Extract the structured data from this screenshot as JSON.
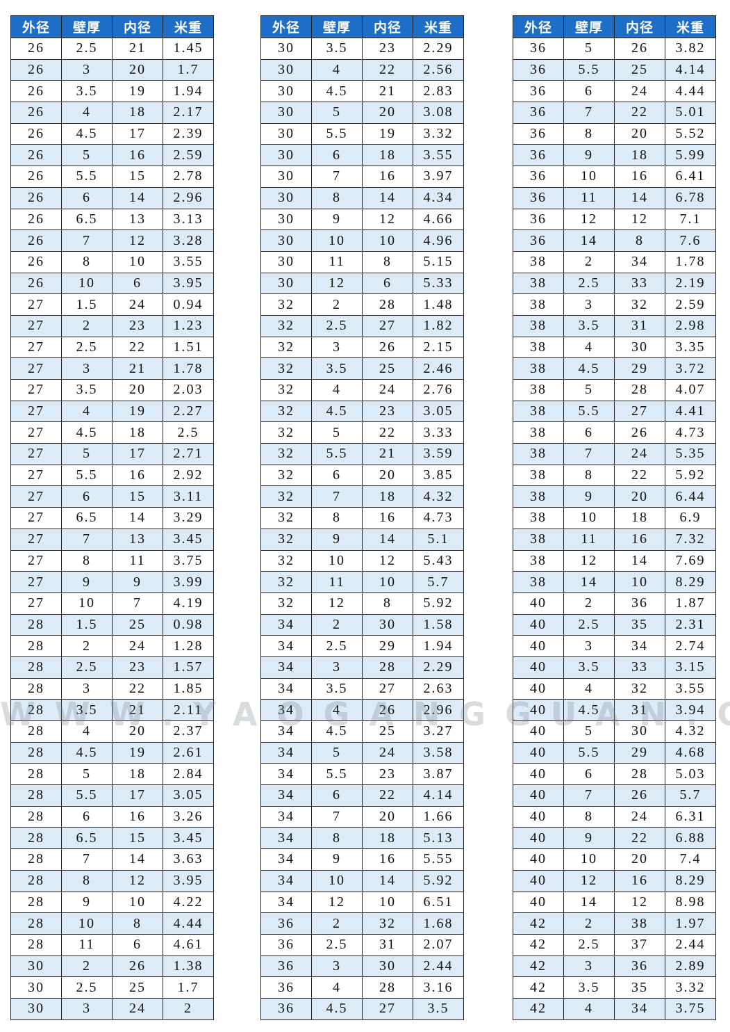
{
  "tables": [
    {
      "header": [
        "外径",
        "壁厚",
        "内径",
        "米重"
      ],
      "rows": [
        [
          "26",
          "2.5",
          "21",
          "1.45"
        ],
        [
          "26",
          "3",
          "20",
          "1.7"
        ],
        [
          "26",
          "3.5",
          "19",
          "1.94"
        ],
        [
          "26",
          "4",
          "18",
          "2.17"
        ],
        [
          "26",
          "4.5",
          "17",
          "2.39"
        ],
        [
          "26",
          "5",
          "16",
          "2.59"
        ],
        [
          "26",
          "5.5",
          "15",
          "2.78"
        ],
        [
          "26",
          "6",
          "14",
          "2.96"
        ],
        [
          "26",
          "6.5",
          "13",
          "3.13"
        ],
        [
          "26",
          "7",
          "12",
          "3.28"
        ],
        [
          "26",
          "8",
          "10",
          "3.55"
        ],
        [
          "26",
          "10",
          "6",
          "3.95"
        ],
        [
          "27",
          "1.5",
          "24",
          "0.94"
        ],
        [
          "27",
          "2",
          "23",
          "1.23"
        ],
        [
          "27",
          "2.5",
          "22",
          "1.51"
        ],
        [
          "27",
          "3",
          "21",
          "1.78"
        ],
        [
          "27",
          "3.5",
          "20",
          "2.03"
        ],
        [
          "27",
          "4",
          "19",
          "2.27"
        ],
        [
          "27",
          "4.5",
          "18",
          "2.5"
        ],
        [
          "27",
          "5",
          "17",
          "2.71"
        ],
        [
          "27",
          "5.5",
          "16",
          "2.92"
        ],
        [
          "27",
          "6",
          "15",
          "3.11"
        ],
        [
          "27",
          "6.5",
          "14",
          "3.29"
        ],
        [
          "27",
          "7",
          "13",
          "3.45"
        ],
        [
          "27",
          "8",
          "11",
          "3.75"
        ],
        [
          "27",
          "9",
          "9",
          "3.99"
        ],
        [
          "27",
          "10",
          "7",
          "4.19"
        ],
        [
          "28",
          "1.5",
          "25",
          "0.98"
        ],
        [
          "28",
          "2",
          "24",
          "1.28"
        ],
        [
          "28",
          "2.5",
          "23",
          "1.57"
        ],
        [
          "28",
          "3",
          "22",
          "1.85"
        ],
        [
          "28",
          "3.5",
          "21",
          "2.11"
        ],
        [
          "28",
          "4",
          "20",
          "2.37"
        ],
        [
          "28",
          "4.5",
          "19",
          "2.61"
        ],
        [
          "28",
          "5",
          "18",
          "2.84"
        ],
        [
          "28",
          "5.5",
          "17",
          "3.05"
        ],
        [
          "28",
          "6",
          "16",
          "3.26"
        ],
        [
          "28",
          "6.5",
          "15",
          "3.45"
        ],
        [
          "28",
          "7",
          "14",
          "3.63"
        ],
        [
          "28",
          "8",
          "12",
          "3.95"
        ],
        [
          "28",
          "9",
          "10",
          "4.22"
        ],
        [
          "28",
          "10",
          "8",
          "4.44"
        ],
        [
          "28",
          "11",
          "6",
          "4.61"
        ],
        [
          "30",
          "2",
          "26",
          "1.38"
        ],
        [
          "30",
          "2.5",
          "25",
          "1.7"
        ],
        [
          "30",
          "3",
          "24",
          "2"
        ]
      ]
    },
    {
      "header": [
        "外径",
        "壁厚",
        "内径",
        "米重"
      ],
      "rows": [
        [
          "30",
          "3.5",
          "23",
          "2.29"
        ],
        [
          "30",
          "4",
          "22",
          "2.56"
        ],
        [
          "30",
          "4.5",
          "21",
          "2.83"
        ],
        [
          "30",
          "5",
          "20",
          "3.08"
        ],
        [
          "30",
          "5.5",
          "19",
          "3.32"
        ],
        [
          "30",
          "6",
          "18",
          "3.55"
        ],
        [
          "30",
          "7",
          "16",
          "3.97"
        ],
        [
          "30",
          "8",
          "14",
          "4.34"
        ],
        [
          "30",
          "9",
          "12",
          "4.66"
        ],
        [
          "30",
          "10",
          "10",
          "4.96"
        ],
        [
          "30",
          "11",
          "8",
          "5.15"
        ],
        [
          "30",
          "12",
          "6",
          "5.33"
        ],
        [
          "32",
          "2",
          "28",
          "1.48"
        ],
        [
          "32",
          "2.5",
          "27",
          "1.82"
        ],
        [
          "32",
          "3",
          "26",
          "2.15"
        ],
        [
          "32",
          "3.5",
          "25",
          "2.46"
        ],
        [
          "32",
          "4",
          "24",
          "2.76"
        ],
        [
          "32",
          "4.5",
          "23",
          "3.05"
        ],
        [
          "32",
          "5",
          "22",
          "3.33"
        ],
        [
          "32",
          "5.5",
          "21",
          "3.59"
        ],
        [
          "32",
          "6",
          "20",
          "3.85"
        ],
        [
          "32",
          "7",
          "18",
          "4.32"
        ],
        [
          "32",
          "8",
          "16",
          "4.73"
        ],
        [
          "32",
          "9",
          "14",
          "5.1"
        ],
        [
          "32",
          "10",
          "12",
          "5.43"
        ],
        [
          "32",
          "11",
          "10",
          "5.7"
        ],
        [
          "32",
          "12",
          "8",
          "5.92"
        ],
        [
          "34",
          "2",
          "30",
          "1.58"
        ],
        [
          "34",
          "2.5",
          "29",
          "1.94"
        ],
        [
          "34",
          "3",
          "28",
          "2.29"
        ],
        [
          "34",
          "3.5",
          "27",
          "2.63"
        ],
        [
          "34",
          "4",
          "26",
          "2.96"
        ],
        [
          "34",
          "4.5",
          "25",
          "3.27"
        ],
        [
          "34",
          "5",
          "24",
          "3.58"
        ],
        [
          "34",
          "5.5",
          "23",
          "3.87"
        ],
        [
          "34",
          "6",
          "22",
          "4.14"
        ],
        [
          "34",
          "7",
          "20",
          "1.66"
        ],
        [
          "34",
          "8",
          "18",
          "5.13"
        ],
        [
          "34",
          "9",
          "16",
          "5.55"
        ],
        [
          "34",
          "10",
          "14",
          "5.92"
        ],
        [
          "34",
          "12",
          "10",
          "6.51"
        ],
        [
          "36",
          "2",
          "32",
          "1.68"
        ],
        [
          "36",
          "2.5",
          "31",
          "2.07"
        ],
        [
          "36",
          "3",
          "30",
          "2.44"
        ],
        [
          "36",
          "4",
          "28",
          "3.16"
        ],
        [
          "36",
          "4.5",
          "27",
          "3.5"
        ]
      ]
    },
    {
      "header": [
        "外径",
        "壁厚",
        "内径",
        "米重"
      ],
      "rows": [
        [
          "36",
          "5",
          "26",
          "3.82"
        ],
        [
          "36",
          "5.5",
          "25",
          "4.14"
        ],
        [
          "36",
          "6",
          "24",
          "4.44"
        ],
        [
          "36",
          "7",
          "22",
          "5.01"
        ],
        [
          "36",
          "8",
          "20",
          "5.52"
        ],
        [
          "36",
          "9",
          "18",
          "5.99"
        ],
        [
          "36",
          "10",
          "16",
          "6.41"
        ],
        [
          "36",
          "11",
          "14",
          "6.78"
        ],
        [
          "36",
          "12",
          "12",
          "7.1"
        ],
        [
          "36",
          "14",
          "8",
          "7.6"
        ],
        [
          "38",
          "2",
          "34",
          "1.78"
        ],
        [
          "38",
          "2.5",
          "33",
          "2.19"
        ],
        [
          "38",
          "3",
          "32",
          "2.59"
        ],
        [
          "38",
          "3.5",
          "31",
          "2.98"
        ],
        [
          "38",
          "4",
          "30",
          "3.35"
        ],
        [
          "38",
          "4.5",
          "29",
          "3.72"
        ],
        [
          "38",
          "5",
          "28",
          "4.07"
        ],
        [
          "38",
          "5.5",
          "27",
          "4.41"
        ],
        [
          "38",
          "6",
          "26",
          "4.73"
        ],
        [
          "38",
          "7",
          "24",
          "5.35"
        ],
        [
          "38",
          "8",
          "22",
          "5.92"
        ],
        [
          "38",
          "9",
          "20",
          "6.44"
        ],
        [
          "38",
          "10",
          "18",
          "6.9"
        ],
        [
          "38",
          "11",
          "16",
          "7.32"
        ],
        [
          "38",
          "12",
          "14",
          "7.69"
        ],
        [
          "38",
          "14",
          "10",
          "8.29"
        ],
        [
          "40",
          "2",
          "36",
          "1.87"
        ],
        [
          "40",
          "2.5",
          "35",
          "2.31"
        ],
        [
          "40",
          "3",
          "34",
          "2.74"
        ],
        [
          "40",
          "3.5",
          "33",
          "3.15"
        ],
        [
          "40",
          "4",
          "32",
          "3.55"
        ],
        [
          "40",
          "4.5",
          "31",
          "3.94"
        ],
        [
          "40",
          "5",
          "30",
          "4.32"
        ],
        [
          "40",
          "5.5",
          "29",
          "4.68"
        ],
        [
          "40",
          "6",
          "28",
          "5.03"
        ],
        [
          "40",
          "7",
          "26",
          "5.7"
        ],
        [
          "40",
          "8",
          "24",
          "6.31"
        ],
        [
          "40",
          "9",
          "22",
          "6.88"
        ],
        [
          "40",
          "10",
          "20",
          "7.4"
        ],
        [
          "40",
          "12",
          "16",
          "8.29"
        ],
        [
          "40",
          "14",
          "12",
          "8.98"
        ],
        [
          "42",
          "2",
          "38",
          "1.97"
        ],
        [
          "42",
          "2.5",
          "37",
          "2.44"
        ],
        [
          "42",
          "3",
          "36",
          "2.89"
        ],
        [
          "42",
          "3.5",
          "35",
          "3.32"
        ],
        [
          "42",
          "4",
          "34",
          "3.75"
        ]
      ]
    }
  ],
  "watermark": "WWW.YAOGANGGUAN.CN"
}
